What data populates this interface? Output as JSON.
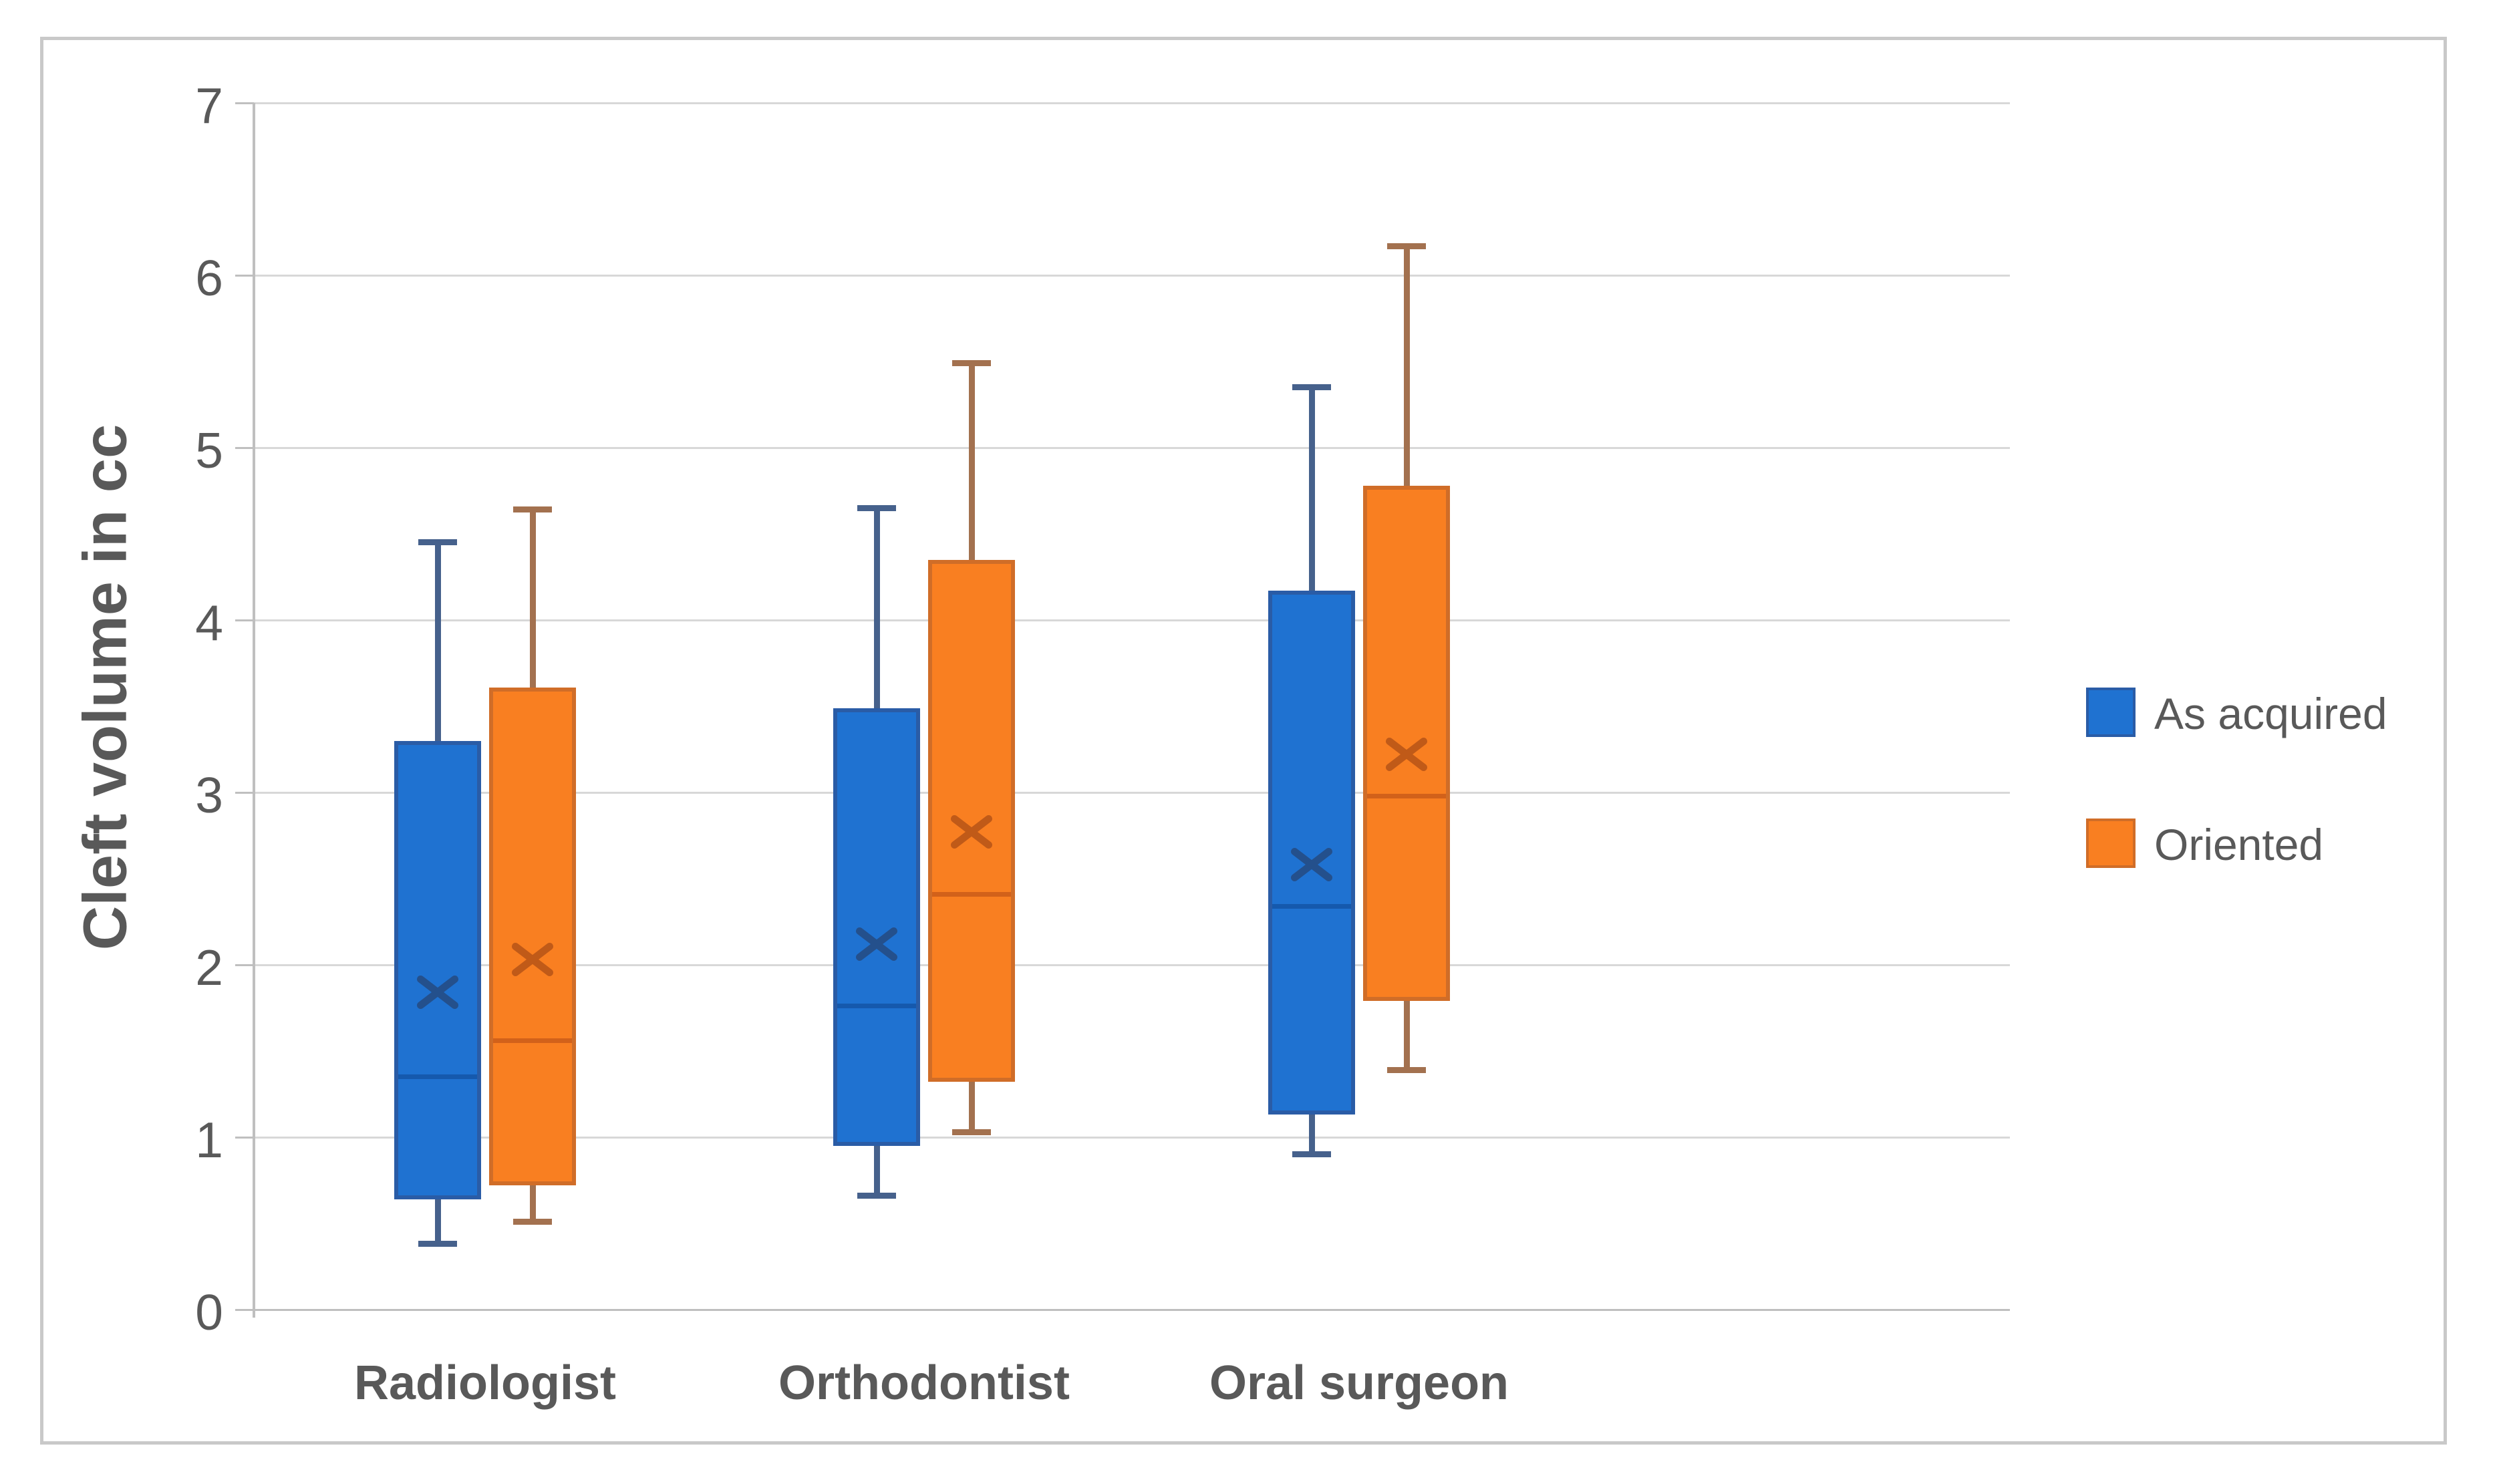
{
  "figure": {
    "background": "#ffffff",
    "border_color": "#c9c9c9",
    "text_color": "#595959",
    "axis_color": "#bfbfbf",
    "grid_color": "#d8d8d8"
  },
  "chart_data": {
    "type": "boxplot",
    "title": "",
    "xlabel": "",
    "ylabel": "Cleft volume in cc",
    "ylim": [
      0,
      7
    ],
    "ytick_step": 1,
    "yticks": [
      "0",
      "1",
      "2",
      "3",
      "4",
      "5",
      "6",
      "7"
    ],
    "grid": true,
    "legend_position": "right-middle",
    "categories": [
      "Radiologist",
      "Orthodontist",
      "Oral surgeon"
    ],
    "series": [
      {
        "name": "As acquired",
        "fill_color": "#1f72d1",
        "border_color": "#2a5ca6",
        "median_color": "#1559ad",
        "whisker_color": "#46618c",
        "mean_color": "#24508c",
        "boxes": [
          {
            "min": 0.38,
            "q1": 0.64,
            "median": 1.35,
            "q3": 3.3,
            "max": 4.45,
            "mean": 1.84
          },
          {
            "min": 0.66,
            "q1": 0.95,
            "median": 1.76,
            "q3": 3.49,
            "max": 4.65,
            "mean": 2.12
          },
          {
            "min": 0.9,
            "q1": 1.13,
            "median": 2.34,
            "q3": 4.17,
            "max": 5.35,
            "mean": 2.58
          }
        ]
      },
      {
        "name": "Oriented",
        "fill_color": "#f97f21",
        "border_color": "#d06d28",
        "median_color": "#d2611a",
        "whisker_color": "#a3714f",
        "mean_color": "#c05a18",
        "boxes": [
          {
            "min": 0.51,
            "q1": 0.72,
            "median": 1.56,
            "q3": 3.61,
            "max": 4.64,
            "mean": 2.03
          },
          {
            "min": 1.03,
            "q1": 1.32,
            "median": 2.41,
            "q3": 4.35,
            "max": 5.49,
            "mean": 2.77
          },
          {
            "min": 1.39,
            "q1": 1.79,
            "median": 2.98,
            "q3": 4.78,
            "max": 6.17,
            "mean": 3.22
          }
        ]
      }
    ]
  }
}
